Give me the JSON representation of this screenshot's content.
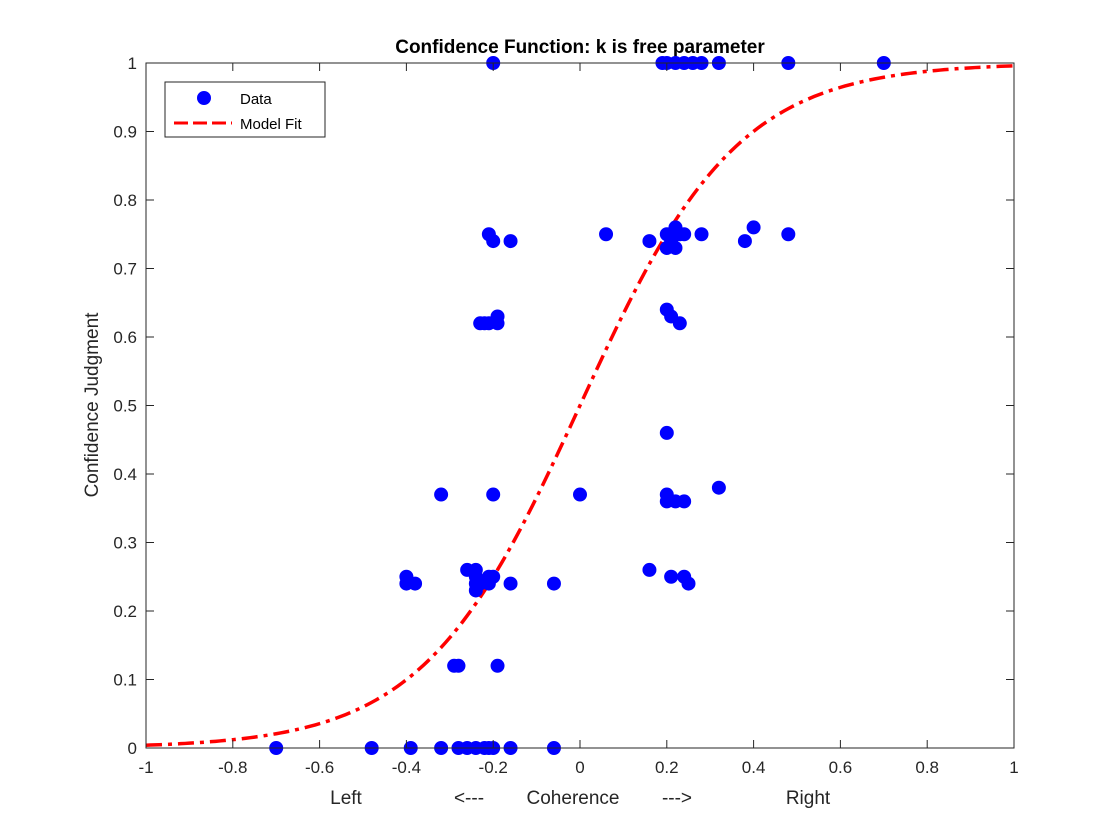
{
  "chart_data": {
    "type": "scatter",
    "title": "Confidence Function: k is free parameter",
    "ylabel": "Confidence Judgment",
    "xlabel_parts": [
      "Left",
      "<---",
      "Coherence",
      "--->",
      "Right"
    ],
    "xlim": [
      -1,
      1
    ],
    "ylim": [
      0,
      1
    ],
    "xticks": [
      -1,
      -0.8,
      -0.6,
      -0.4,
      -0.2,
      0,
      0.2,
      0.4,
      0.6,
      0.8,
      1
    ],
    "xtick_labels": [
      "-1",
      "-0.8",
      "-0.6",
      "-0.4",
      "-0.2",
      "0",
      "0.2",
      "0.4",
      "0.6",
      "0.8",
      "1"
    ],
    "yticks": [
      0,
      0.1,
      0.2,
      0.3,
      0.4,
      0.5,
      0.6,
      0.7,
      0.8,
      0.9,
      1
    ],
    "ytick_labels": [
      "0",
      "0.1",
      "0.2",
      "0.3",
      "0.4",
      "0.5",
      "0.6",
      "0.7",
      "0.8",
      "0.9",
      "1"
    ],
    "grid": false,
    "legend_position": "top-left",
    "series": [
      {
        "name": "Data",
        "kind": "scatter",
        "color": "#0000ff",
        "points": [
          [
            -0.2,
            1
          ],
          [
            0.19,
            1
          ],
          [
            0.2,
            1
          ],
          [
            0.22,
            1
          ],
          [
            0.24,
            1
          ],
          [
            0.26,
            1
          ],
          [
            0.28,
            1
          ],
          [
            0.32,
            1
          ],
          [
            0.48,
            1
          ],
          [
            0.7,
            1
          ],
          [
            -0.21,
            0.75
          ],
          [
            -0.2,
            0.74
          ],
          [
            -0.16,
            0.74
          ],
          [
            0.06,
            0.75
          ],
          [
            0.16,
            0.74
          ],
          [
            0.2,
            0.75
          ],
          [
            0.2,
            0.73
          ],
          [
            0.22,
            0.76
          ],
          [
            0.22,
            0.73
          ],
          [
            0.23,
            0.75
          ],
          [
            0.24,
            0.75
          ],
          [
            0.21,
            0.74
          ],
          [
            0.28,
            0.75
          ],
          [
            0.38,
            0.74
          ],
          [
            0.4,
            0.76
          ],
          [
            0.48,
            0.75
          ],
          [
            -0.23,
            0.62
          ],
          [
            -0.22,
            0.62
          ],
          [
            -0.21,
            0.62
          ],
          [
            -0.19,
            0.62
          ],
          [
            -0.19,
            0.63
          ],
          [
            0.2,
            0.64
          ],
          [
            0.21,
            0.63
          ],
          [
            0.23,
            0.62
          ],
          [
            0.2,
            0.46
          ],
          [
            -0.32,
            0.37
          ],
          [
            -0.2,
            0.37
          ],
          [
            0.0,
            0.37
          ],
          [
            0.2,
            0.37
          ],
          [
            0.2,
            0.36
          ],
          [
            0.22,
            0.36
          ],
          [
            0.24,
            0.36
          ],
          [
            0.32,
            0.38
          ],
          [
            -0.4,
            0.25
          ],
          [
            -0.4,
            0.24
          ],
          [
            -0.38,
            0.24
          ],
          [
            -0.26,
            0.26
          ],
          [
            -0.24,
            0.26
          ],
          [
            -0.24,
            0.25
          ],
          [
            -0.24,
            0.24
          ],
          [
            -0.24,
            0.23
          ],
          [
            -0.23,
            0.24
          ],
          [
            -0.21,
            0.24
          ],
          [
            -0.21,
            0.25
          ],
          [
            -0.2,
            0.25
          ],
          [
            -0.16,
            0.24
          ],
          [
            -0.06,
            0.24
          ],
          [
            0.16,
            0.26
          ],
          [
            0.21,
            0.25
          ],
          [
            0.24,
            0.25
          ],
          [
            0.25,
            0.24
          ],
          [
            -0.29,
            0.12
          ],
          [
            -0.28,
            0.12
          ],
          [
            -0.19,
            0.12
          ],
          [
            -0.7,
            0
          ],
          [
            -0.48,
            0
          ],
          [
            -0.39,
            0
          ],
          [
            -0.32,
            0
          ],
          [
            -0.28,
            0
          ],
          [
            -0.26,
            0
          ],
          [
            -0.24,
            0
          ],
          [
            -0.22,
            0
          ],
          [
            -0.21,
            0
          ],
          [
            -0.2,
            0
          ],
          [
            -0.16,
            0
          ],
          [
            -0.06,
            0
          ]
        ]
      },
      {
        "name": "Model Fit",
        "kind": "line",
        "color": "#ff0000",
        "line_style": "dash-dot",
        "function": "logistic",
        "k": 5.5,
        "x0": 0
      }
    ]
  }
}
